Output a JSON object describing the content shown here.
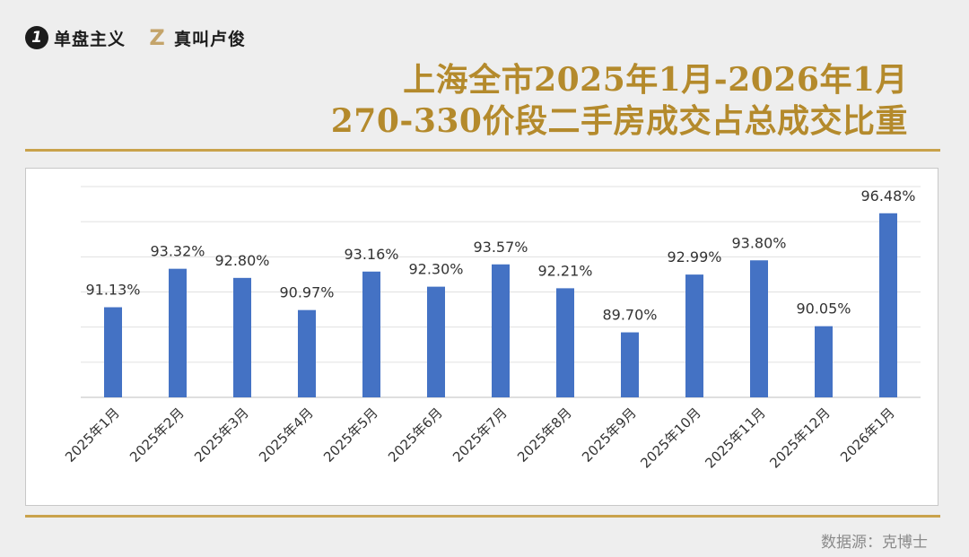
{
  "brand": {
    "logo1_glyph": "1",
    "name1": "单盘主义",
    "logo2_glyph": "Z",
    "name2": "真叫卢俊"
  },
  "title": {
    "line1": "上海全市2025年1月-2026年1月",
    "line2": "270-330价段二手房成交占总成交比重"
  },
  "source": "数据源：克博士",
  "colors": {
    "bar": "#4472c4",
    "title": "#b48a2c",
    "rule": "#c9a24b"
  },
  "chart_data": {
    "type": "bar",
    "title": "上海全市2025年1月-2026年1月 270-330价段二手房成交占总成交比重",
    "categories": [
      "2025年1月",
      "2025年2月",
      "2025年3月",
      "2025年4月",
      "2025年5月",
      "2025年6月",
      "2025年7月",
      "2025年8月",
      "2025年9月",
      "2025年10月",
      "2025年11月",
      "2025年12月",
      "2026年1月"
    ],
    "values": [
      91.13,
      93.32,
      92.8,
      90.97,
      93.16,
      92.3,
      93.57,
      92.21,
      89.7,
      92.99,
      93.8,
      90.05,
      96.48
    ],
    "data_labels": [
      "91.13%",
      "93.32%",
      "92.80%",
      "90.97%",
      "93.16%",
      "92.30%",
      "93.57%",
      "92.21%",
      "89.70%",
      "92.99%",
      "93.80%",
      "90.05%",
      "96.48%"
    ],
    "ylim": [
      86,
      98
    ],
    "grid": true,
    "y_axis_labels_shown": false,
    "legend": "none"
  }
}
